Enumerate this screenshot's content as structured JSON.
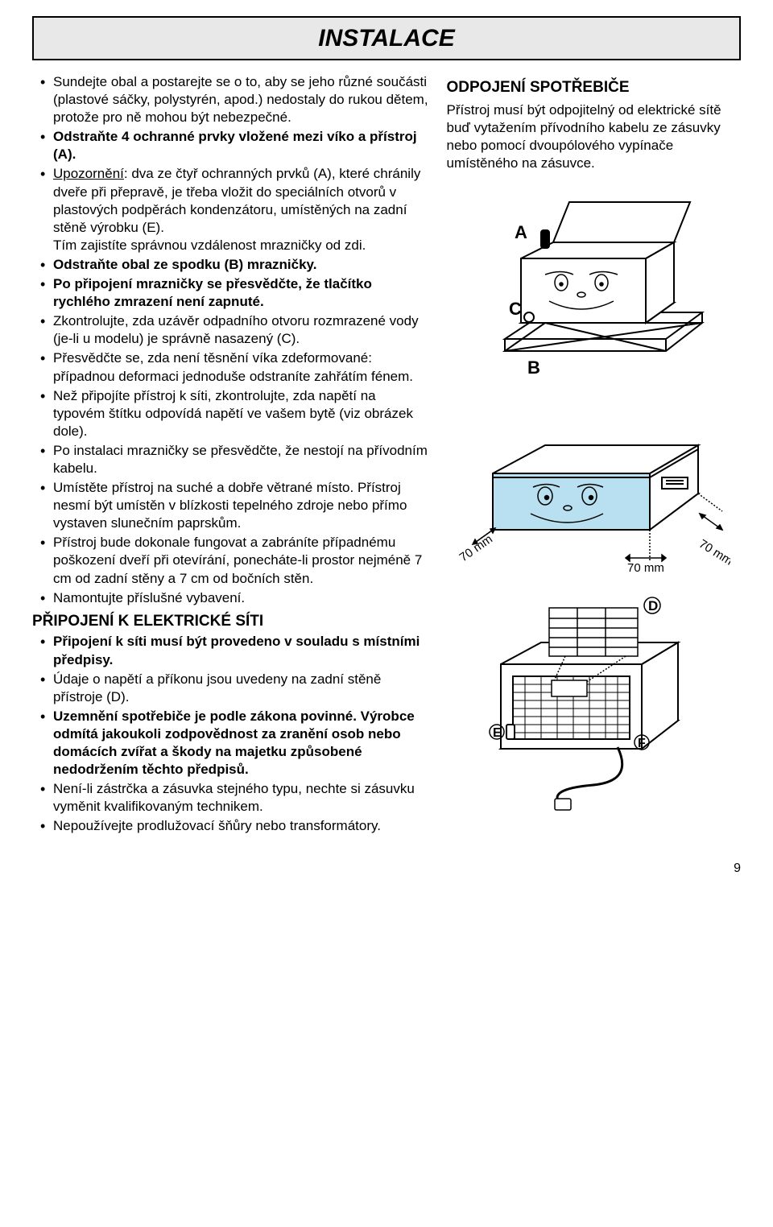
{
  "title": "INSTALACE",
  "left": {
    "bullets1": [
      {
        "text": "Sundejte obal a postarejte se o to, aby se jeho různé součásti (plastové sáčky, polystyrén, apod.) nedostaly do rukou dětem, protože pro ně mohou být nebezpečné."
      },
      {
        "bold": true,
        "text": "Odstraňte 4 ochranné prvky vložené mezi víko a přístroj (A)."
      },
      {
        "prefixUnderline": "Upozornění",
        "text": ": dva ze čtyř ochranných prvků (A), které chránily dveře při přepravě, je třeba vložit do speciálních otvorů v plastových podpěrách kondenzátoru, umístěných na zadní stěně výrobku (E).",
        "tail": "Tím zajistíte správnou vzdálenost mrazničky od zdi."
      },
      {
        "bold": true,
        "text": "Odstraňte obal ze spodku (B) mrazničky."
      },
      {
        "bold": true,
        "text": "Po připojení mrazničky se přesvědčte, že tlačítko rychlého zmrazení není zapnuté."
      },
      {
        "text": "Zkontrolujte, zda uzávěr odpadního otvoru rozmrazené vody (je-li u modelu) je správně nasazený (C)."
      },
      {
        "text": "Přesvědčte se, zda není těsnění víka zdeformované: případnou deformaci jednoduše odstraníte zahřátím fénem."
      },
      {
        "text": "Než připojíte přístroj k síti, zkontrolujte, zda napětí na typovém štítku odpovídá napětí ve vašem bytě (viz obrázek dole)."
      },
      {
        "text": "Po instalaci mrazničky se přesvědčte, že nestojí na přívodním kabelu."
      },
      {
        "text": "Umístěte přístroj na suché a dobře větrané místo. Přístroj nesmí být umístěn v blízkosti tepelného zdroje nebo přímo vystaven slunečním paprskům."
      },
      {
        "text": "Přístroj bude dokonale fungovat a zabráníte případnému poškození dveří při otevírání, ponecháte-li prostor nejméně 7 cm od zadní stěny a 7 cm od bočních stěn."
      },
      {
        "text": "Namontujte příslušné vybavení."
      }
    ],
    "section2_title": "PŘIPOJENÍ K ELEKTRICKÉ SÍTI",
    "bullets2": [
      {
        "bold": true,
        "text": "Připojení k síti musí být provedeno v souladu s místními předpisy."
      },
      {
        "text": "Údaje o napětí a příkonu jsou uvedeny na zadní stěně přístroje (D)."
      },
      {
        "bold": true,
        "text": "Uzemnění spotřebiče je podle zákona povinné. Výrobce odmítá jakoukoli zodpovědnost za zranění osob nebo domácích zvířat a škody na majetku způsobené nedodržením těchto předpisů."
      },
      {
        "text": "Není-li zástrčka a zásuvka stejného typu, nechte si zásuvku vyměnit kvalifikovaným technikem."
      },
      {
        "text": "Nepoužívejte prodlužovací šňůry nebo transformátory."
      }
    ]
  },
  "right": {
    "section_title": "ODPOJENÍ SPOTŘEBIČE",
    "para": "Přístroj musí být odpojitelný od elektrické sítě buď vytažením přívodního kabelu ze zásuvky nebo pomocí dvoupólového vypínače umístěného na zásuvce.",
    "labels": {
      "A": "A",
      "B": "B",
      "C": "C"
    },
    "dim1": "70 mm",
    "dim2": "70 mm",
    "dim3": "70 mm"
  },
  "pageNumber": "9",
  "colors": {
    "line": "#000000",
    "lightBlue": "#b8e0f0",
    "gray": "#e8e8e8",
    "white": "#ffffff"
  }
}
